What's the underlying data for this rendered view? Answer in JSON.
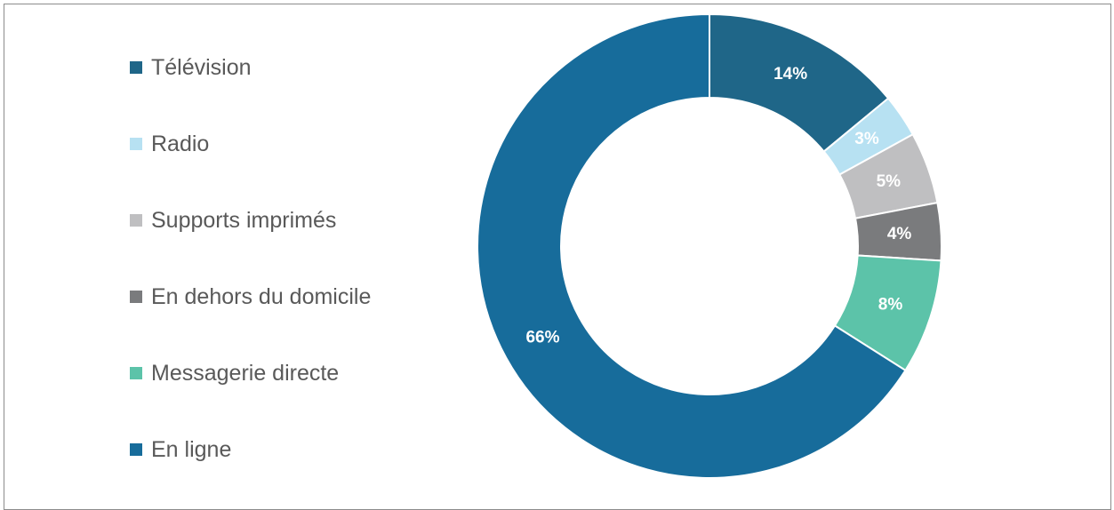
{
  "chart_data": {
    "type": "pie",
    "title": "",
    "donut": true,
    "legend_position": "left",
    "categories": [
      "Télévision",
      "Radio",
      "Supports imprimés",
      "En dehors du domicile",
      "Messagerie directe",
      "En ligne"
    ],
    "values": [
      14,
      3,
      5,
      4,
      8,
      66
    ],
    "labels": [
      "14%",
      "3%",
      "5%",
      "4%",
      "8%",
      "66%"
    ],
    "colors": [
      "#1f6688",
      "#b7e1f2",
      "#bfbfc1",
      "#7a7b7d",
      "#5cc3a9",
      "#176c9b"
    ]
  }
}
